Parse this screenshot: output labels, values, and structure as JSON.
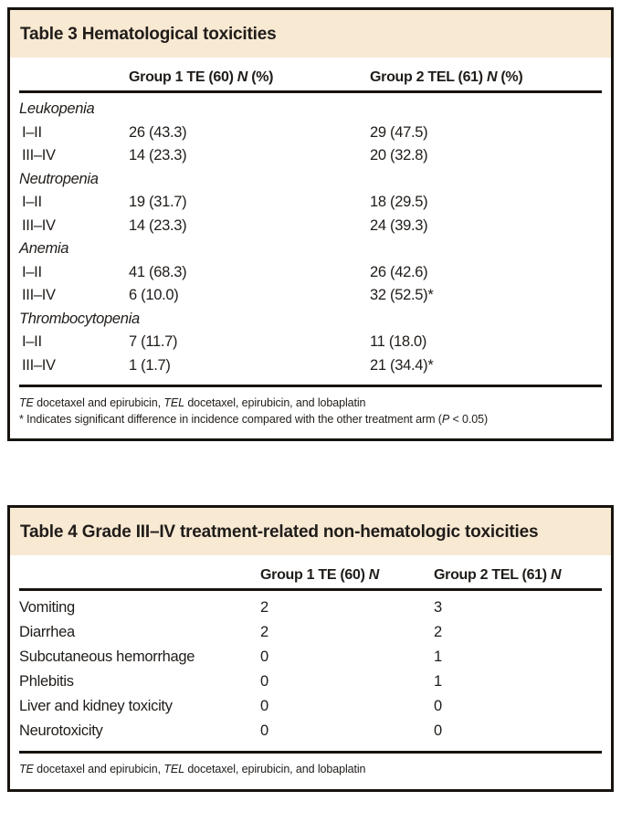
{
  "colors": {
    "title_band": "#f8e9d3",
    "border": "#17130e",
    "text": "#201c19"
  },
  "table3": {
    "title": "Table 3 Hematological toxicities",
    "header": {
      "col1": {
        "prefix": "Group 1 TE (60) ",
        "n": "N",
        "suffix": " (%)"
      },
      "col2": {
        "prefix": "Group 2 TEL (61) ",
        "n": "N",
        "suffix": " (%)"
      }
    },
    "rows": [
      {
        "label": "Leukopenia"
      },
      {
        "label": "I–II",
        "g1": "26 (43.3)",
        "g2": "29 (47.5)"
      },
      {
        "label": "III–IV",
        "g1": "14 (23.3)",
        "g2": "20 (32.8)"
      },
      {
        "label": "Neutropenia"
      },
      {
        "label": "I–II",
        "g1": "19 (31.7)",
        "g2": "18 (29.5)"
      },
      {
        "label": "III–IV",
        "g1": "14 (23.3)",
        "g2": "24 (39.3)"
      },
      {
        "label": "Anemia"
      },
      {
        "label": "I–II",
        "g1": "41 (68.3)",
        "g2": "26 (42.6)"
      },
      {
        "label": "III–IV",
        "g1": "6 (10.0)",
        "g2": "32 (52.5)*"
      },
      {
        "label": "Thrombocytopenia"
      },
      {
        "label": "I–II",
        "g1": "7 (11.7)",
        "g2": "11 (18.0)"
      },
      {
        "label": "III–IV",
        "g1": "1 (1.7)",
        "g2": "21 (34.4)*"
      }
    ],
    "footnotes": {
      "abbrev": {
        "te": "TE",
        "mid": " docetaxel and epirubicin, ",
        "tel": "TEL",
        "rest": " docetaxel, epirubicin, and lobaplatin"
      },
      "sig": {
        "pre": "* Indicates significant difference in incidence compared with the other treatment arm (",
        "p": "P",
        "post": " < 0.05)"
      }
    }
  },
  "table4": {
    "title": "Table 4 Grade III–IV treatment-related non-hematologic toxicities",
    "header": {
      "col1": {
        "prefix": "Group 1 TE (60) ",
        "n": "N",
        "suffix": ""
      },
      "col2": {
        "prefix": "Group 2 TEL (61) ",
        "n": "N",
        "suffix": ""
      }
    },
    "rows": [
      {
        "label": "Vomiting",
        "g1": "2",
        "g2": "3"
      },
      {
        "label": "Diarrhea",
        "g1": "2",
        "g2": "2"
      },
      {
        "label": "Subcutaneous hemorrhage",
        "g1": "0",
        "g2": "1"
      },
      {
        "label": "Phlebitis",
        "g1": "0",
        "g2": "1"
      },
      {
        "label": "Liver and kidney toxicity",
        "g1": "0",
        "g2": "0"
      },
      {
        "label": "Neurotoxicity",
        "g1": "0",
        "g2": "0"
      }
    ],
    "footnotes": {
      "abbrev": {
        "te": "TE",
        "mid": " docetaxel and epirubicin, ",
        "tel": "TEL",
        "rest": " docetaxel, epirubicin, and lobaplatin"
      }
    }
  }
}
